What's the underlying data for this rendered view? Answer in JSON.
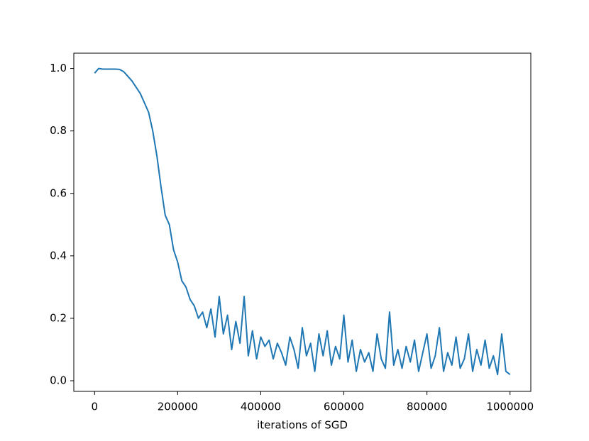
{
  "chart_data": {
    "type": "line",
    "xlabel": "iterations of SGD",
    "x": [
      0,
      10000,
      20000,
      30000,
      40000,
      50000,
      60000,
      70000,
      80000,
      90000,
      100000,
      110000,
      120000,
      130000,
      140000,
      150000,
      160000,
      170000,
      180000,
      190000,
      200000,
      210000,
      220000,
      230000,
      240000,
      250000,
      260000,
      270000,
      280000,
      290000,
      300000,
      310000,
      320000,
      330000,
      340000,
      350000,
      360000,
      370000,
      380000,
      390000,
      400000,
      410000,
      420000,
      430000,
      440000,
      450000,
      460000,
      470000,
      480000,
      490000,
      500000,
      510000,
      520000,
      530000,
      540000,
      550000,
      560000,
      570000,
      580000,
      590000,
      600000,
      610000,
      620000,
      630000,
      640000,
      650000,
      660000,
      670000,
      680000,
      690000,
      700000,
      710000,
      720000,
      730000,
      740000,
      750000,
      760000,
      770000,
      780000,
      790000,
      800000,
      810000,
      820000,
      830000,
      840000,
      850000,
      860000,
      870000,
      880000,
      890000,
      900000,
      910000,
      920000,
      930000,
      940000,
      950000,
      960000,
      970000,
      980000,
      990000,
      1000000
    ],
    "series": [
      {
        "color": "#1f77b4",
        "values": [
          0.985,
          1.0,
          0.998,
          0.998,
          0.998,
          0.998,
          0.997,
          0.99,
          0.975,
          0.96,
          0.94,
          0.92,
          0.89,
          0.86,
          0.8,
          0.72,
          0.62,
          0.53,
          0.5,
          0.42,
          0.38,
          0.32,
          0.3,
          0.26,
          0.24,
          0.2,
          0.22,
          0.17,
          0.23,
          0.14,
          0.27,
          0.15,
          0.21,
          0.1,
          0.19,
          0.12,
          0.27,
          0.08,
          0.16,
          0.07,
          0.14,
          0.11,
          0.13,
          0.07,
          0.12,
          0.09,
          0.05,
          0.14,
          0.1,
          0.04,
          0.17,
          0.08,
          0.12,
          0.03,
          0.15,
          0.08,
          0.16,
          0.05,
          0.11,
          0.07,
          0.21,
          0.06,
          0.13,
          0.03,
          0.1,
          0.06,
          0.09,
          0.03,
          0.15,
          0.07,
          0.04,
          0.22,
          0.05,
          0.1,
          0.04,
          0.11,
          0.06,
          0.13,
          0.03,
          0.09,
          0.15,
          0.04,
          0.08,
          0.17,
          0.03,
          0.09,
          0.05,
          0.14,
          0.04,
          0.07,
          0.15,
          0.03,
          0.1,
          0.05,
          0.13,
          0.04,
          0.08,
          0.02,
          0.15,
          0.03,
          0.02
        ]
      }
    ],
    "xlim": [
      -50000,
      1050000
    ],
    "ylim": [
      -0.034,
      1.049
    ],
    "xticks": [
      0,
      200000,
      400000,
      600000,
      800000,
      1000000
    ],
    "yticks": [
      {
        "value": 0,
        "label": "0.0"
      },
      0.2,
      0.4,
      0.6,
      0.8,
      {
        "value": 1,
        "label": "1.0"
      }
    ]
  }
}
